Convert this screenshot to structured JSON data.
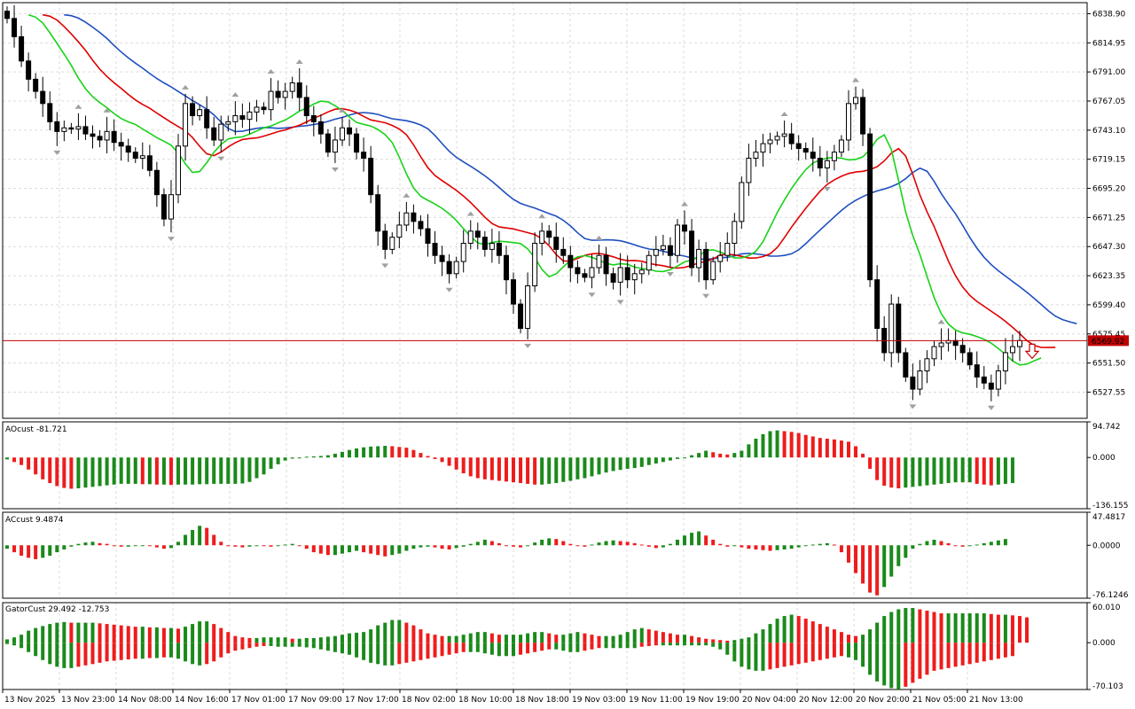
{
  "colors": {
    "background": "#ffffff",
    "grid": "#dcdcdc",
    "frame": "#000000",
    "bull_candle": "#ffffff",
    "bear_candle": "#000000",
    "alligator_jaw": "#1f4fbf",
    "alligator_teeth": "#e00000",
    "alligator_lips": "#19d219",
    "bid_line": "#c00000",
    "up_bar": "#1a8a1a",
    "down_bar": "#ee1c1c",
    "fractal": "#a0a0a0"
  },
  "chart_data": [
    {
      "type": "candlestick",
      "title": "",
      "price_ticks": [
        "6838.90",
        "6814.95",
        "6791.00",
        "6767.05",
        "6743.10",
        "6719.15",
        "6695.20",
        "6671.25",
        "6647.30",
        "6623.35",
        "6599.40",
        "6575.45",
        "6551.50",
        "6527.55"
      ],
      "ylim": [
        6506,
        6848
      ],
      "current_price": 6569.92,
      "current_price_label": "6569.92",
      "signal_arrow": "down-arrow",
      "time_labels": [
        "13 Nov 2025",
        "13 Nov 23:00",
        "14 Nov 08:00",
        "14 Nov 16:00",
        "17 Nov 01:00",
        "17 Nov 09:00",
        "17 Nov 17:00",
        "18 Nov 02:00",
        "18 Nov 10:00",
        "18 Nov 18:00",
        "19 Nov 03:00",
        "19 Nov 11:00",
        "19 Nov 19:00",
        "20 Nov 04:00",
        "20 Nov 12:00",
        "20 Nov 20:00",
        "21 Nov 05:00",
        "21 Nov 13:00"
      ],
      "close_series": [
        6835,
        6820,
        6800,
        6785,
        6775,
        6765,
        6750,
        6742,
        6745,
        6744,
        6746,
        6740,
        6738,
        6735,
        6742,
        6733,
        6730,
        6725,
        6720,
        6722,
        6710,
        6690,
        6670,
        6690,
        6730,
        6765,
        6755,
        6760,
        6745,
        6735,
        6748,
        6750,
        6755,
        6752,
        6758,
        6762,
        6760,
        6775,
        6770,
        6775,
        6782,
        6770,
        6755,
        6750,
        6740,
        6725,
        6735,
        6745,
        6740,
        6725,
        6720,
        6690,
        6660,
        6645,
        6655,
        6665,
        6675,
        6668,
        6662,
        6650,
        6640,
        6635,
        6625,
        6635,
        6650,
        6660,
        6655,
        6645,
        6650,
        6640,
        6620,
        6600,
        6580,
        6615,
        6650,
        6660,
        6655,
        6645,
        6640,
        6630,
        6625,
        6622,
        6630,
        6640,
        6625,
        6618,
        6630,
        6620,
        6625,
        6628,
        6640,
        6645,
        6648,
        6640,
        6665,
        6660,
        6630,
        6645,
        6620,
        6635,
        6640,
        6650,
        6668,
        6700,
        6720,
        6725,
        6732,
        6735,
        6738,
        6740,
        6732,
        6728,
        6725,
        6720,
        6712,
        6718,
        6725,
        6735,
        6765,
        6770,
        6740,
        6620,
        6580,
        6560,
        6600,
        6560,
        6540,
        6530,
        6545,
        6555,
        6565,
        6568,
        6570,
        6566,
        6560,
        6550,
        6540,
        6535,
        6530,
        6545,
        6560,
        6565,
        6570
      ]
    },
    {
      "type": "bar",
      "name": "AOcust",
      "label": "AOcust -81.721",
      "ticks": [
        "94.742",
        "0.000",
        "-136.155"
      ],
      "ylim": [
        -136.155,
        94.742
      ],
      "values": [
        -5,
        -12,
        -20,
        -32,
        -45,
        -58,
        -68,
        -76,
        -81,
        -83,
        -82,
        -80,
        -78,
        -76,
        -74,
        -72,
        -70,
        -70,
        -70,
        -71,
        -71,
        -72,
        -72,
        -73,
        -72,
        -72,
        -72,
        -71,
        -71,
        -70,
        -70,
        -70,
        -70,
        -69,
        -65,
        -55,
        -45,
        -30,
        -18,
        -8,
        -3,
        -1,
        2,
        3,
        4,
        6,
        10,
        15,
        20,
        24,
        27,
        29,
        30,
        31,
        30,
        28,
        26,
        20,
        12,
        4,
        -4,
        -12,
        -22,
        -32,
        -42,
        -50,
        -55,
        -58,
        -60,
        -62,
        -64,
        -66,
        -68,
        -70,
        -72,
        -72,
        -70,
        -68,
        -65,
        -62,
        -58,
        -55,
        -50,
        -45,
        -40,
        -36,
        -33,
        -30,
        -28,
        -25,
        -20,
        -16,
        -12,
        -8,
        -4,
        0,
        6,
        12,
        18,
        14,
        10,
        8,
        12,
        18,
        35,
        50,
        62,
        70,
        72,
        70,
        68,
        65,
        60,
        56,
        52,
        50,
        48,
        45,
        42,
        30,
        10,
        -30,
        -60,
        -75,
        -80,
        -82,
        -80,
        -78,
        -76,
        -74,
        -72,
        -70,
        -68,
        -66,
        -66,
        -66,
        -70,
        -72,
        -74,
        -72,
        -70,
        -68
      ]
    },
    {
      "type": "bar",
      "name": "ACcust",
      "label": "ACcust 9.4874",
      "ticks": [
        "47.4817",
        "0.0000",
        "-76.1246"
      ],
      "ylim": [
        -76.1246,
        47.4817
      ],
      "values": [
        -5,
        -10,
        -15,
        -18,
        -20,
        -18,
        -15,
        -10,
        -6,
        -2,
        2,
        4,
        5,
        3,
        2,
        0,
        -2,
        -2,
        -1,
        0,
        -1,
        -3,
        -5,
        -4,
        5,
        15,
        22,
        28,
        25,
        15,
        5,
        0,
        -2,
        -3,
        -2,
        0,
        -1,
        -2,
        -1,
        1,
        2,
        0,
        -5,
        -10,
        -12,
        -14,
        -14,
        -12,
        -10,
        -8,
        -10,
        -12,
        -14,
        -16,
        -14,
        -12,
        -8,
        -5,
        -3,
        -2,
        -3,
        -5,
        -6,
        -4,
        -2,
        2,
        5,
        8,
        6,
        3,
        0,
        -2,
        -3,
        0,
        4,
        8,
        10,
        9,
        6,
        2,
        -1,
        -2,
        1,
        4,
        6,
        7,
        6,
        5,
        3,
        1,
        -2,
        -4,
        -3,
        2,
        8,
        14,
        18,
        20,
        14,
        8,
        2,
        -2,
        -1,
        -3,
        -5,
        -6,
        -7,
        -8,
        -7,
        -6,
        -5,
        -3,
        -1,
        1,
        2,
        3,
        1,
        -10,
        -25,
        -40,
        -55,
        -68,
        -72,
        -60,
        -45,
        -30,
        -18,
        -5,
        2,
        6,
        8,
        6,
        3,
        0,
        -2,
        -1,
        1,
        3,
        5,
        7,
        9
      ]
    },
    {
      "type": "bar",
      "name": "GatorCust",
      "label": "GatorCust 29.492 -12.753",
      "ticks": [
        "60.010",
        "0.000",
        "-70.103"
      ],
      "ylim": [
        -70.103,
        60.01
      ],
      "upper_values": [
        5,
        8,
        12,
        18,
        22,
        25,
        28,
        30,
        31,
        30,
        30,
        30,
        30,
        29,
        28,
        27,
        26,
        25,
        24,
        24,
        23,
        23,
        22,
        22,
        21,
        24,
        28,
        32,
        32,
        28,
        22,
        16,
        10,
        8,
        7,
        7,
        8,
        8,
        8,
        8,
        6,
        6,
        7,
        7,
        8,
        9,
        10,
        12,
        14,
        15,
        16,
        20,
        26,
        30,
        34,
        34,
        30,
        26,
        20,
        14,
        12,
        10,
        10,
        10,
        12,
        14,
        16,
        16,
        14,
        12,
        12,
        12,
        12,
        14,
        16,
        16,
        14,
        12,
        12,
        14,
        16,
        14,
        12,
        10,
        10,
        10,
        12,
        16,
        20,
        22,
        20,
        18,
        16,
        14,
        12,
        12,
        10,
        8,
        6,
        5,
        4,
        3,
        4,
        6,
        8,
        14,
        20,
        28,
        36,
        40,
        42,
        40,
        36,
        32,
        28,
        24,
        20,
        16,
        12,
        10,
        12,
        20,
        30,
        40,
        46,
        50,
        52,
        52,
        50,
        48,
        46,
        44,
        44,
        44,
        44,
        44,
        44,
        44,
        43,
        42,
        42,
        41,
        40,
        38
      ],
      "lower_values": [
        -2,
        -4,
        -8,
        -14,
        -20,
        -26,
        -32,
        -36,
        -38,
        -38,
        -36,
        -34,
        -32,
        -30,
        -28,
        -27,
        -26,
        -25,
        -24,
        -24,
        -23,
        -23,
        -22,
        -22,
        -24,
        -28,
        -32,
        -34,
        -32,
        -28,
        -22,
        -16,
        -12,
        -10,
        -8,
        -6,
        -5,
        -5,
        -6,
        -6,
        -6,
        -6,
        -7,
        -8,
        -10,
        -12,
        -14,
        -16,
        -18,
        -22,
        -26,
        -30,
        -32,
        -34,
        -34,
        -32,
        -30,
        -28,
        -26,
        -24,
        -22,
        -20,
        -18,
        -16,
        -14,
        -14,
        -14,
        -16,
        -18,
        -20,
        -20,
        -20,
        -18,
        -16,
        -14,
        -12,
        -10,
        -10,
        -12,
        -14,
        -14,
        -12,
        -10,
        -8,
        -8,
        -8,
        -8,
        -8,
        -8,
        -6,
        -5,
        -4,
        -4,
        -4,
        -4,
        -4,
        -4,
        -4,
        -4,
        -6,
        -10,
        -18,
        -28,
        -36,
        -40,
        -42,
        -42,
        -40,
        -38,
        -36,
        -34,
        -32,
        -30,
        -28,
        -26,
        -24,
        -22,
        -20,
        -22,
        -26,
        -36,
        -48,
        -58,
        -64,
        -68,
        -70,
        -66,
        -60,
        -54,
        -48,
        -42,
        -40,
        -38,
        -36,
        -34,
        -32,
        -30,
        -28,
        -26,
        -24,
        -22,
        -20
      ]
    }
  ]
}
